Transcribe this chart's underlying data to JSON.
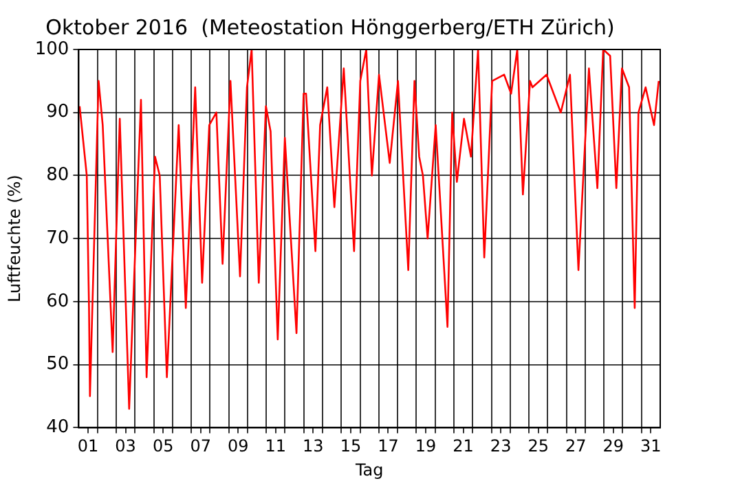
{
  "chart_data": {
    "type": "line",
    "title": "Oktober 2016  (Meteostation Hönggerberg/ETH Zürich)",
    "xlabel": "Tag",
    "ylabel": "Luftfeuchte (%)",
    "x": [
      1.05,
      1.43,
      1.55,
      1.6,
      2.06,
      2.28,
      2.81,
      3.19,
      3.69,
      4.32,
      4.62,
      5.07,
      5.32,
      5.7,
      6.33,
      6.71,
      7.21,
      7.58,
      7.96,
      8.34,
      8.67,
      9.09,
      9.6,
      9.97,
      10.22,
      10.6,
      10.98,
      11.23,
      11.61,
      11.99,
      12.61,
      12.99,
      13.12,
      13.62,
      13.87,
      14.25,
      14.63,
      15.13,
      15.68,
      16.01,
      16.33,
      16.63,
      17.01,
      17.58,
      18.02,
      18.57,
      18.9,
      19.15,
      19.35,
      19.6,
      20.03,
      20.23,
      20.66,
      20.91,
      21.16,
      21.54,
      21.91,
      22.29,
      22.62,
      23.04,
      23.68,
      24.05,
      24.38,
      24.68,
      25.06,
      25.19,
      25.94,
      26.7,
      27.19,
      27.64,
      28.2,
      28.65,
      28.96,
      29.33,
      29.66,
      29.96,
      30.34,
      30.64,
      30.84,
      31.22,
      31.67,
      31.92
    ],
    "series": [
      {
        "color": "#ff0000",
        "values": [
          91,
          80,
          59,
          45,
          95,
          88,
          52,
          89,
          43,
          92,
          48,
          83,
          80,
          48,
          88,
          59,
          94,
          63,
          88,
          90,
          66,
          95,
          64,
          94,
          100,
          63,
          91,
          87,
          54,
          86,
          55,
          93,
          93,
          68,
          88,
          94,
          75,
          97,
          68,
          95,
          100,
          80,
          96,
          82,
          95,
          65,
          95,
          83,
          80,
          70,
          88,
          78,
          56,
          90,
          79,
          89,
          83,
          100,
          67,
          95,
          96,
          93,
          100,
          77,
          95,
          94,
          96,
          90,
          96,
          65,
          97,
          78,
          100,
          99,
          78,
          97,
          94,
          59,
          90,
          94,
          88,
          95
        ]
      }
    ],
    "xlim": [
      1,
      32
    ],
    "xticks": [
      {
        "value": 1.5,
        "label": "01"
      },
      {
        "value": 2,
        "label": null
      },
      {
        "value": 3,
        "label": null
      },
      {
        "value": 3.5,
        "label": "03"
      },
      {
        "value": 4,
        "label": null
      },
      {
        "value": 5,
        "label": null
      },
      {
        "value": 5.5,
        "label": "05"
      },
      {
        "value": 6,
        "label": null
      },
      {
        "value": 7,
        "label": null
      },
      {
        "value": 7.5,
        "label": "07"
      },
      {
        "value": 8,
        "label": null
      },
      {
        "value": 9,
        "label": null
      },
      {
        "value": 9.5,
        "label": "09"
      },
      {
        "value": 10,
        "label": null
      },
      {
        "value": 11,
        "label": null
      },
      {
        "value": 11.5,
        "label": "11"
      },
      {
        "value": 12,
        "label": null
      },
      {
        "value": 13,
        "label": null
      },
      {
        "value": 13.5,
        "label": "13"
      },
      {
        "value": 14,
        "label": null
      },
      {
        "value": 15,
        "label": null
      },
      {
        "value": 15.5,
        "label": "15"
      },
      {
        "value": 16,
        "label": null
      },
      {
        "value": 17,
        "label": null
      },
      {
        "value": 17.5,
        "label": "17"
      },
      {
        "value": 18,
        "label": null
      },
      {
        "value": 19,
        "label": null
      },
      {
        "value": 19.5,
        "label": "19"
      },
      {
        "value": 20,
        "label": null
      },
      {
        "value": 21,
        "label": null
      },
      {
        "value": 21.5,
        "label": "21"
      },
      {
        "value": 22,
        "label": null
      },
      {
        "value": 23,
        "label": null
      },
      {
        "value": 23.5,
        "label": "23"
      },
      {
        "value": 24,
        "label": null
      },
      {
        "value": 25,
        "label": null
      },
      {
        "value": 25.5,
        "label": "25"
      },
      {
        "value": 26,
        "label": null
      },
      {
        "value": 27,
        "label": null
      },
      {
        "value": 27.5,
        "label": "27"
      },
      {
        "value": 28,
        "label": null
      },
      {
        "value": 29,
        "label": null
      },
      {
        "value": 29.5,
        "label": "29"
      },
      {
        "value": 30,
        "label": null
      },
      {
        "value": 31,
        "label": null
      },
      {
        "value": 31.5,
        "label": "31"
      }
    ],
    "ylim": [
      40,
      100
    ],
    "yticks": [
      40,
      50,
      60,
      70,
      80,
      90,
      100
    ],
    "grid": true,
    "legend": false,
    "marker": "none",
    "line_style": "solid"
  }
}
